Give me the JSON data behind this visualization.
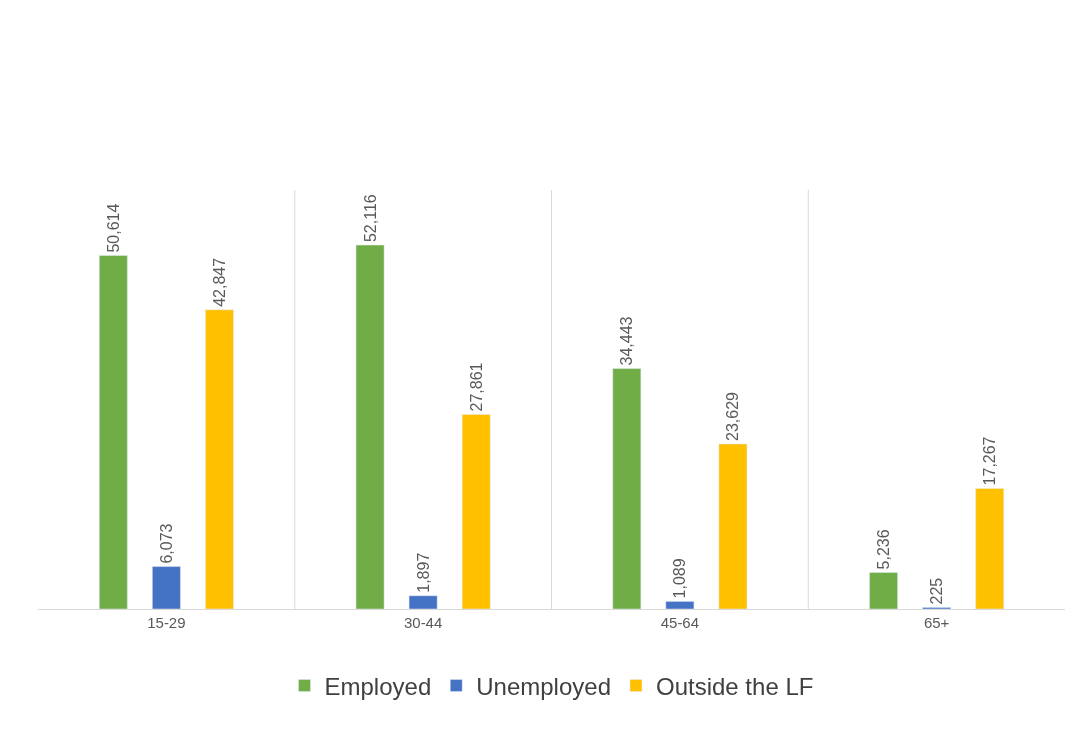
{
  "chart_data": {
    "type": "bar",
    "categories": [
      "15-29",
      "30-44",
      "45-64",
      "65+"
    ],
    "series": [
      {
        "name": "Employed",
        "color": "#70ad47",
        "values": [
          50614,
          52116,
          34443,
          5236
        ],
        "value_labels": [
          "50,614",
          "52,116",
          "34,443",
          "5,236"
        ]
      },
      {
        "name": "Unemployed",
        "color": "#4472c4",
        "values": [
          6073,
          1897,
          1089,
          225
        ],
        "value_labels": [
          "6,073",
          "1,897",
          "1,089",
          "225"
        ]
      },
      {
        "name": "Outside the LF",
        "color": "#ffc000",
        "values": [
          42847,
          27861,
          23629,
          17267
        ],
        "value_labels": [
          "42,847",
          "27,861",
          "23,629",
          "17,267"
        ]
      }
    ],
    "ylim": [
      0,
      60000
    ],
    "grid": "x",
    "legend": "bottom",
    "tick_labels": "x"
  }
}
